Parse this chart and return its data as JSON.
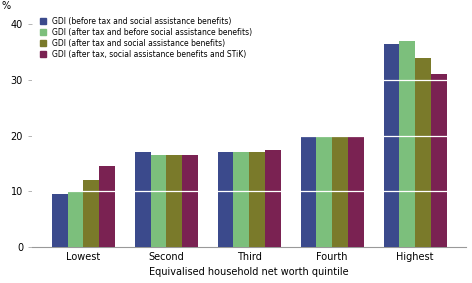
{
  "categories": [
    "Lowest",
    "Second",
    "Third",
    "Fourth",
    "Highest"
  ],
  "series": {
    "GDI (before tax and social assistance benefits)": [
      9.5,
      17.0,
      17.0,
      20.0,
      36.5
    ],
    "GDI (after tax and before social assistance benefits)": [
      10.0,
      16.5,
      17.0,
      20.0,
      37.0
    ],
    "GDI (after tax and social assistance benefits)": [
      12.0,
      16.5,
      17.0,
      20.0,
      34.0
    ],
    "GDI (after tax, social assistance benefits and STiK)": [
      14.5,
      16.5,
      17.5,
      20.0,
      31.0
    ]
  },
  "colors": [
    "#3B4A8C",
    "#7CBF7C",
    "#7A7A2A",
    "#7A2252"
  ],
  "ylabel": "%",
  "xlabel": "Equivalised household net worth quintile",
  "ylim": [
    0,
    42
  ],
  "yticks": [
    0,
    10,
    20,
    30,
    40
  ],
  "legend_labels": [
    "GDI (before tax and social assistance benefits)",
    "GDI (after tax and before social assistance benefits)",
    "GDI (after tax and social assistance benefits)",
    "GDI (after tax, social assistance benefits and STiK)"
  ],
  "bar_width": 0.19,
  "bg_color": "#ffffff"
}
